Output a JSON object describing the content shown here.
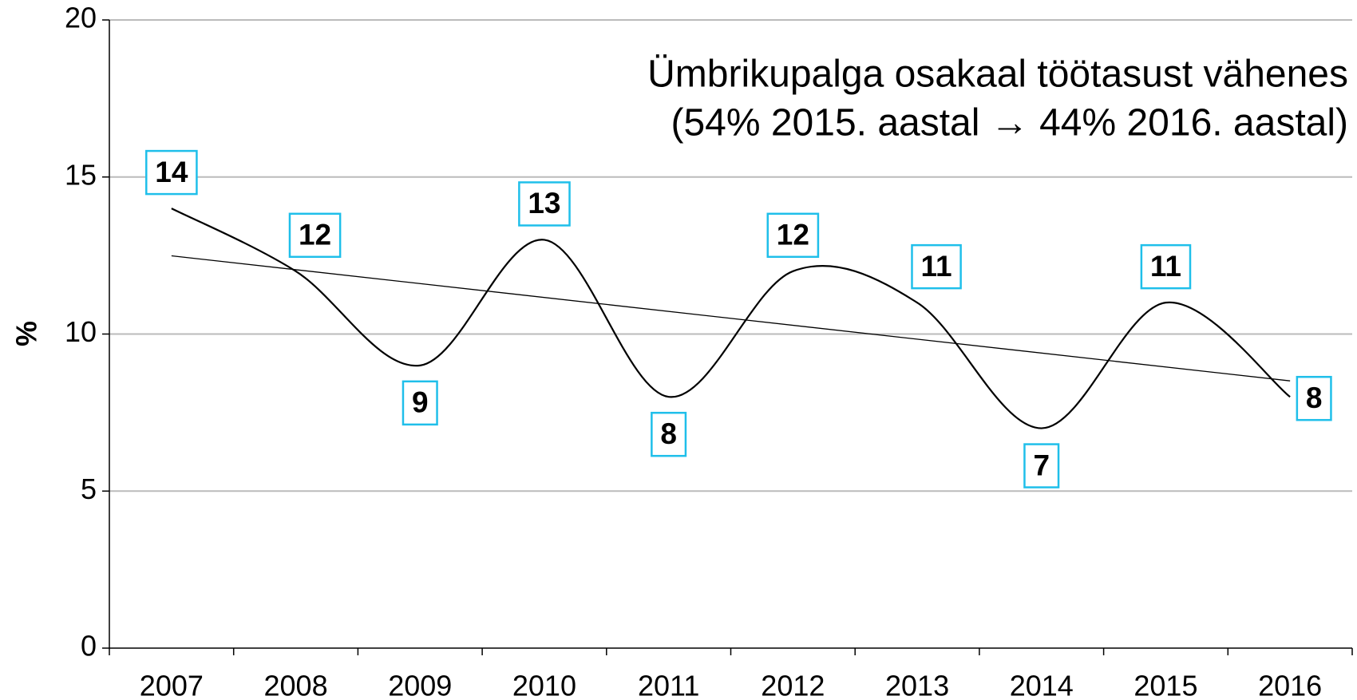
{
  "chart_data": {
    "type": "line",
    "annotation": [
      "Ümbrikupalga osakaal töötasust vähenes",
      "(54% 2015. aastal → 44% 2016. aastal)"
    ],
    "y_label": "%",
    "categories": [
      "2007",
      "2008",
      "2009",
      "2010",
      "2011",
      "2012",
      "2013",
      "2014",
      "2015",
      "2016"
    ],
    "series": [
      {
        "name": "%",
        "color": "#000000",
        "values": [
          14,
          12,
          9,
          13,
          8,
          12,
          11,
          7,
          11,
          8
        ]
      }
    ],
    "ylim": [
      0,
      20
    ],
    "yticks": [
      0,
      5,
      10,
      15,
      20
    ],
    "grid": true,
    "smooth": true,
    "trendline": "linear",
    "data_label_border": "#1fbfea"
  }
}
